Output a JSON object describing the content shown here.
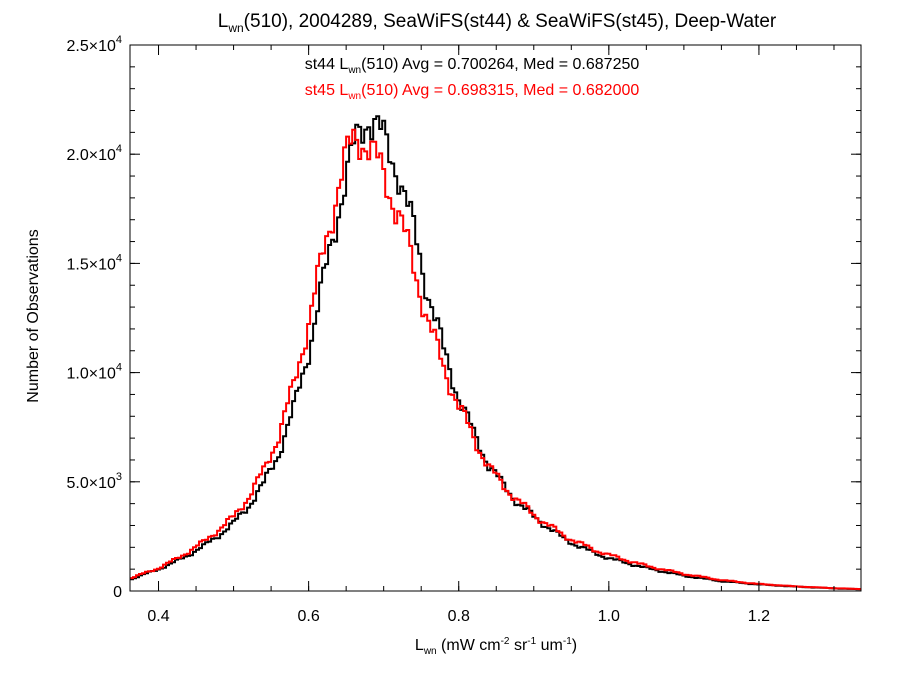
{
  "chart_data": {
    "type": "line",
    "title": {
      "pre": "L",
      "sub": "wn",
      "post": "(510), 2004289, SeaWiFS(st44) & SeaWiFS(st45), Deep-Water"
    },
    "xlabel": {
      "pre": "L",
      "sub": "wn",
      "post": " (mW cm",
      "sup1": "-2",
      "mid1": " sr",
      "sup2": "-1",
      "mid2": " um",
      "sup3": "-1",
      "end": ")"
    },
    "ylabel": "Number of Observations",
    "xlim": [
      0.362,
      1.336
    ],
    "ylim": [
      0,
      25000
    ],
    "grid": false,
    "x_ticks": [
      {
        "value": 0.4,
        "label": "0.4"
      },
      {
        "value": 0.6,
        "label": "0.6"
      },
      {
        "value": 0.8,
        "label": "0.8"
      },
      {
        "value": 1.0,
        "label": "1.0"
      },
      {
        "value": 1.2,
        "label": "1.2"
      }
    ],
    "y_ticks": [
      {
        "value": 0,
        "label": "0",
        "mant": "",
        "exp": ""
      },
      {
        "value": 5000,
        "label": "",
        "mant": "5.0×10",
        "exp": "3"
      },
      {
        "value": 10000,
        "label": "",
        "mant": "1.0×10",
        "exp": "4"
      },
      {
        "value": 15000,
        "label": "",
        "mant": "1.5×10",
        "exp": "4"
      },
      {
        "value": 20000,
        "label": "",
        "mant": "2.0×10",
        "exp": "4"
      },
      {
        "value": 25000,
        "label": "",
        "mant": "2.5×10",
        "exp": "4"
      }
    ],
    "annotations": [
      {
        "pre": "st44 L",
        "sub": "wn",
        "post": "(510) Avg = 0.700264, Med = 0.687250",
        "color": "#000000"
      },
      {
        "pre": "st45 L",
        "sub": "wn",
        "post": "(510) Avg = 0.698315, Med = 0.682000",
        "color": "#ff0000"
      }
    ],
    "series": [
      {
        "color": "#000000",
        "x": [
          0.36,
          0.38,
          0.4,
          0.42,
          0.44,
          0.46,
          0.48,
          0.5,
          0.52,
          0.54,
          0.56,
          0.58,
          0.6,
          0.62,
          0.64,
          0.66,
          0.67,
          0.68,
          0.69,
          0.7,
          0.72,
          0.74,
          0.76,
          0.78,
          0.8,
          0.82,
          0.84,
          0.86,
          0.88,
          0.9,
          0.92,
          0.94,
          0.96,
          0.98,
          1.0,
          1.05,
          1.1,
          1.15,
          1.2,
          1.25,
          1.3,
          1.336
        ],
        "y": [
          500,
          750,
          1000,
          1300,
          1650,
          2050,
          2550,
          3100,
          3900,
          4900,
          6300,
          8300,
          11000,
          14200,
          17500,
          20200,
          21200,
          21800,
          21300,
          20600,
          19200,
          16500,
          13600,
          11000,
          8900,
          7200,
          5800,
          4800,
          4000,
          3400,
          2900,
          2400,
          2050,
          1750,
          1500,
          1050,
          700,
          450,
          300,
          200,
          120,
          80
        ]
      },
      {
        "color": "#ff0000",
        "x": [
          0.36,
          0.38,
          0.4,
          0.42,
          0.44,
          0.46,
          0.48,
          0.5,
          0.52,
          0.54,
          0.56,
          0.58,
          0.6,
          0.62,
          0.64,
          0.65,
          0.66,
          0.67,
          0.68,
          0.69,
          0.7,
          0.72,
          0.74,
          0.76,
          0.78,
          0.8,
          0.82,
          0.84,
          0.86,
          0.88,
          0.9,
          0.92,
          0.94,
          0.96,
          0.98,
          1.0,
          1.05,
          1.1,
          1.15,
          1.2,
          1.25,
          1.3,
          1.336
        ],
        "y": [
          550,
          800,
          1050,
          1400,
          1800,
          2250,
          2800,
          3400,
          4300,
          5500,
          7100,
          9400,
          12300,
          15500,
          18600,
          19800,
          20600,
          20800,
          20400,
          19700,
          19000,
          17300,
          14800,
          12300,
          10200,
          8500,
          7000,
          5700,
          4800,
          4100,
          3500,
          3000,
          2550,
          2200,
          1900,
          1650,
          1150,
          780,
          500,
          320,
          210,
          130,
          90
        ]
      }
    ]
  }
}
